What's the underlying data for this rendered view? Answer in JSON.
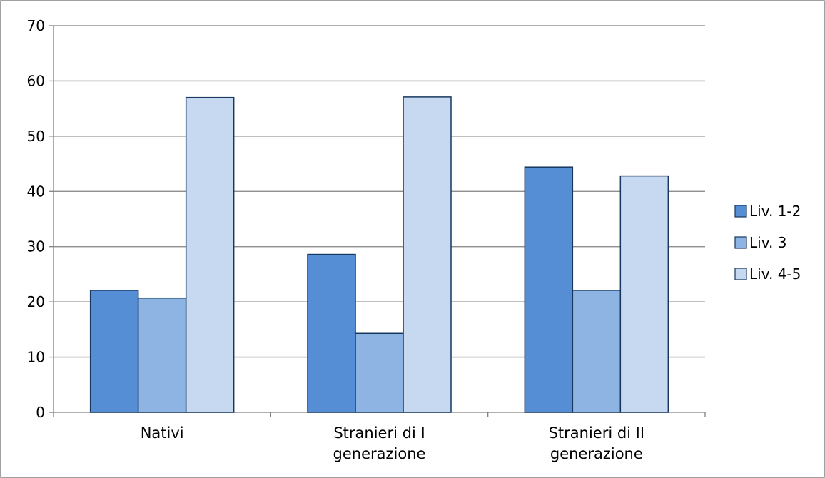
{
  "chart_data": {
    "type": "bar",
    "categories": [
      [
        "Nativi"
      ],
      [
        "Stranieri di I",
        "generazione"
      ],
      [
        "Stranieri di II",
        "generazione"
      ]
    ],
    "series": [
      {
        "name": "Liv. 1-2",
        "values": [
          22.1,
          28.6,
          44.4
        ]
      },
      {
        "name": "Liv. 3",
        "values": [
          20.7,
          14.3,
          22.1
        ]
      },
      {
        "name": "Liv. 4-5",
        "values": [
          57.0,
          57.1,
          42.8
        ]
      }
    ],
    "ylim": [
      0,
      70
    ],
    "yticks": [
      0,
      10,
      20,
      30,
      40,
      50,
      60,
      70
    ],
    "grid": true,
    "legend_position": "right",
    "colors": {
      "series": [
        "#558ed5",
        "#8eb4e3",
        "#c6d9f1"
      ],
      "bar_stroke": "#17375e",
      "grid": "#808080",
      "axis": "#808080",
      "border": "#808080"
    },
    "title": "",
    "xlabel": "",
    "ylabel": ""
  }
}
